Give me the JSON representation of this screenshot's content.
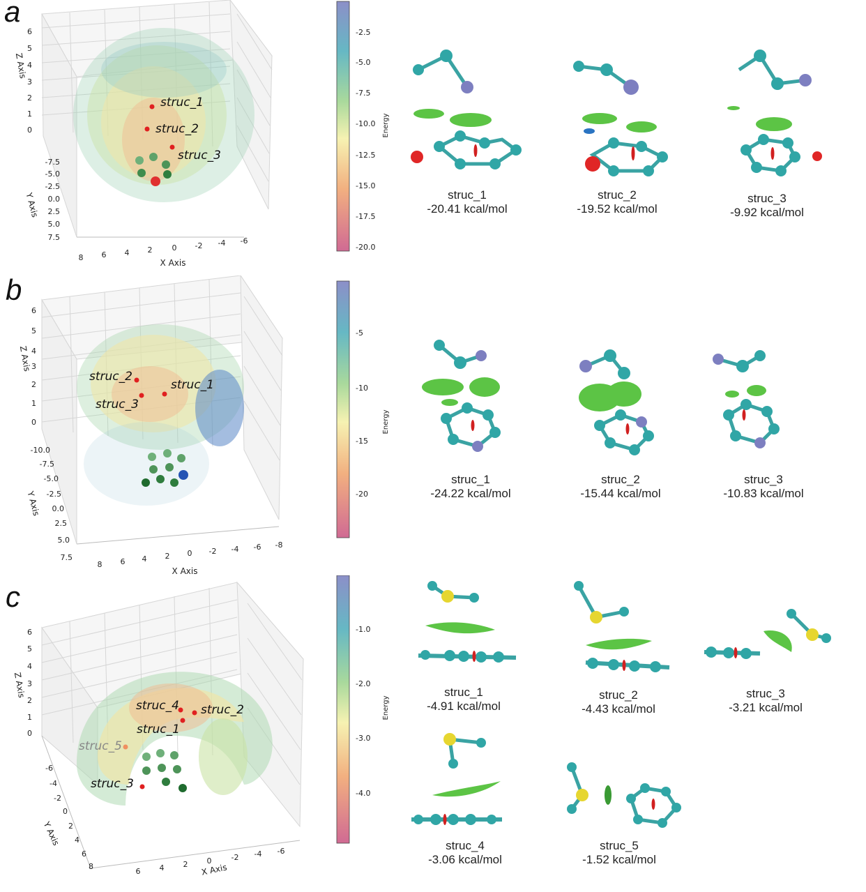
{
  "panels": [
    {
      "letter": "a",
      "axes": {
        "x": "X Axis",
        "y": "Y Axis",
        "z": "Z Axis"
      },
      "z_ticks": [
        "6",
        "5",
        "4",
        "3",
        "2",
        "1",
        "0"
      ],
      "y_ticks": [
        "-7.5",
        "-5.0",
        "-2.5",
        "0.0",
        "2.5",
        "5.0",
        "7.5"
      ],
      "x_ticks": [
        "8",
        "6",
        "4",
        "2",
        "0",
        "-2",
        "-4",
        "-6"
      ],
      "points": [
        "struc_1",
        "struc_2",
        "struc_3"
      ],
      "colorbar": {
        "label": "Energy",
        "ticks": [
          "-2.5",
          "-5.0",
          "-7.5",
          "-10.0",
          "-12.5",
          "-15.0",
          "-17.5",
          "-20.0"
        ]
      },
      "structures": [
        {
          "name": "struc_1",
          "energy": "-20.41 kcal/mol"
        },
        {
          "name": "struc_2",
          "energy": "-19.52 kcal/mol"
        },
        {
          "name": "struc_3",
          "energy": "-9.92 kcal/mol"
        }
      ]
    },
    {
      "letter": "b",
      "axes": {
        "x": "X Axis",
        "y": "Y Axis",
        "z": "Z Axis"
      },
      "z_ticks": [
        "6",
        "5",
        "4",
        "3",
        "2",
        "1",
        "0"
      ],
      "y_ticks": [
        "-10.0",
        "-7.5",
        "-5.0",
        "-2.5",
        "0.0",
        "2.5",
        "5.0",
        "7.5"
      ],
      "x_ticks": [
        "8",
        "6",
        "4",
        "2",
        "0",
        "-2",
        "-4",
        "-6",
        "-8"
      ],
      "points": [
        "struc_2",
        "struc_1",
        "struc_3"
      ],
      "colorbar": {
        "label": "Energy",
        "ticks": [
          "-5",
          "-10",
          "-15",
          "-20"
        ]
      },
      "structures": [
        {
          "name": "struc_1",
          "energy": "-24.22 kcal/mol"
        },
        {
          "name": "struc_2",
          "energy": "-15.44 kcal/mol"
        },
        {
          "name": "struc_3",
          "energy": "-10.83 kcal/mol"
        }
      ]
    },
    {
      "letter": "c",
      "axes": {
        "x": "X Axis",
        "y": "Y Axis",
        "z": "Z Axis"
      },
      "z_ticks": [
        "6",
        "5",
        "4",
        "3",
        "2",
        "1",
        "0"
      ],
      "y_ticks": [
        "-6",
        "-4",
        "-2",
        "0",
        "2",
        "4",
        "6",
        "8"
      ],
      "x_ticks": [
        "6",
        "4",
        "2",
        "0",
        "-2",
        "-4",
        "-6"
      ],
      "points": [
        "struc_4",
        "struc_2",
        "struc_1",
        "struc_5",
        "struc_3"
      ],
      "colorbar": {
        "label": "Energy",
        "ticks": [
          "-1.0",
          "-2.0",
          "-3.0",
          "-4.0"
        ]
      },
      "structures": [
        {
          "name": "struc_1",
          "energy": "-4.91 kcal/mol"
        },
        {
          "name": "struc_2",
          "energy": "-4.43 kcal/mol"
        },
        {
          "name": "struc_3",
          "energy": "-3.21 kcal/mol"
        },
        {
          "name": "struc_4",
          "energy": "-3.06 kcal/mol"
        },
        {
          "name": "struc_5",
          "energy": "-1.52 kcal/mol"
        }
      ]
    }
  ]
}
